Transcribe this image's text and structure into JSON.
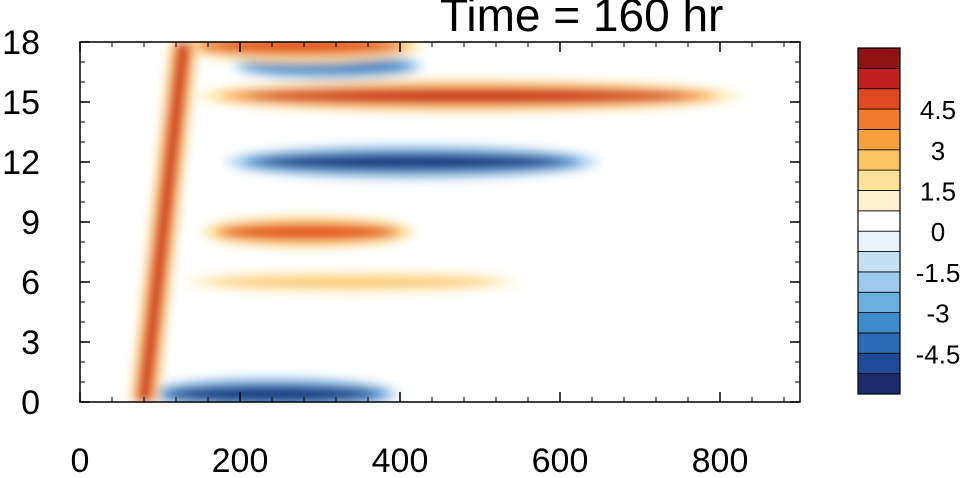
{
  "chart_data": {
    "type": "heatmap",
    "title": "Time = 160 hr",
    "xlabel": "",
    "ylabel": "",
    "xlim": [
      0,
      900
    ],
    "ylim": [
      0,
      18
    ],
    "x_ticks": [
      0,
      200,
      400,
      600,
      800
    ],
    "x_tick_labels": [
      "0",
      "200",
      "400",
      "600",
      "800"
    ],
    "y_ticks": [
      0,
      3,
      6,
      9,
      12,
      15,
      18
    ],
    "y_tick_labels": [
      "0",
      "3",
      "6",
      "9",
      "12",
      "15",
      "18"
    ],
    "colorbar": {
      "placement": "right",
      "range": [
        -6,
        6
      ],
      "levels": [
        -5.25,
        -4.5,
        -3.75,
        -3,
        -2.25,
        -1.5,
        -0.75,
        0,
        0.75,
        1.5,
        2.25,
        3,
        3.75,
        4.5,
        5.25
      ],
      "tick_values": [
        -4.5,
        -3,
        -1.5,
        0,
        1.5,
        3,
        4.5
      ],
      "tick_labels": [
        "-4.5",
        "-3",
        "-1.5",
        "0",
        "1.5",
        "3",
        "4.5"
      ],
      "colors": [
        "#1a2c6b",
        "#1f4b99",
        "#2a6bb5",
        "#3f8ccc",
        "#6aaedc",
        "#9ccaea",
        "#c6e0f3",
        "#e9f3fb",
        "#ffffff",
        "#fff3d2",
        "#fde39a",
        "#fbc462",
        "#f7a040",
        "#f07a2c",
        "#e04a22",
        "#c02020",
        "#8e1414"
      ]
    },
    "features": [
      {
        "label": "upper positive band",
        "x": [
          140,
          830
        ],
        "y": 15.3,
        "value": 5.5
      },
      {
        "label": "upper negative band",
        "x": [
          180,
          650
        ],
        "y": 12.0,
        "value": -5.5
      },
      {
        "label": "mid positive band",
        "x": [
          150,
          420
        ],
        "y": 8.5,
        "value": 5.0
      },
      {
        "label": "lower positive band",
        "x": [
          120,
          560
        ],
        "y": 6.0,
        "value": 2.5
      },
      {
        "label": "bottom negative band",
        "x": [
          80,
          400
        ],
        "y": 0.4,
        "value": -5.5
      },
      {
        "label": "top negative band",
        "x": [
          190,
          430
        ],
        "y": 16.8,
        "value": -4.0
      },
      {
        "label": "top positive band",
        "x": [
          120,
          430
        ],
        "y": 17.8,
        "value": 5.0
      },
      {
        "label": "diagonal front",
        "x": [
          80,
          130
        ],
        "y": [
          0,
          18
        ],
        "value": 6.0
      }
    ]
  }
}
